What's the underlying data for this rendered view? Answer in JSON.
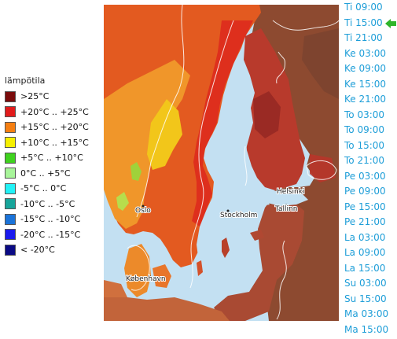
{
  "legend": {
    "title": "lämpötila",
    "items": [
      {
        "label": ">25°C",
        "color": "#7a0c0c"
      },
      {
        "label": "+20°C .. +25°C",
        "color": "#e21b1b"
      },
      {
        "label": "+15°C .. +20°C",
        "color": "#f57f12"
      },
      {
        "label": "+10°C .. +15°C",
        "color": "#f6f000"
      },
      {
        "label": "+5°C .. +10°C",
        "color": "#3fd21e"
      },
      {
        "label": "0°C .. +5°C",
        "color": "#a8f59a"
      },
      {
        "label": "-5°C .. 0°C",
        "color": "#22f2f6"
      },
      {
        "label": "-10°C .. -5°C",
        "color": "#17a59b"
      },
      {
        "label": "-15°C .. -10°C",
        "color": "#1a73d9"
      },
      {
        "label": "-20°C .. -15°C",
        "color": "#1a1aee"
      },
      {
        "label": "< -20°C",
        "color": "#0a0a85"
      }
    ]
  },
  "map": {
    "cities": [
      "Oslo",
      "Stockholm",
      "Helsinki",
      "Tallinn",
      "København"
    ]
  },
  "timeline": {
    "selected_index": 1,
    "items": [
      "Ti 09:00",
      "Ti 15:00",
      "Ti 21:00",
      "Ke 03:00",
      "Ke 09:00",
      "Ke 15:00",
      "Ke 21:00",
      "To 03:00",
      "To 09:00",
      "To 15:00",
      "To 21:00",
      "Pe 03:00",
      "Pe 09:00",
      "Pe 15:00",
      "Pe 21:00",
      "La 03:00",
      "La 09:00",
      "La 15:00",
      "Su 03:00",
      "Su 15:00",
      "Ma 03:00",
      "Ma 15:00"
    ]
  }
}
